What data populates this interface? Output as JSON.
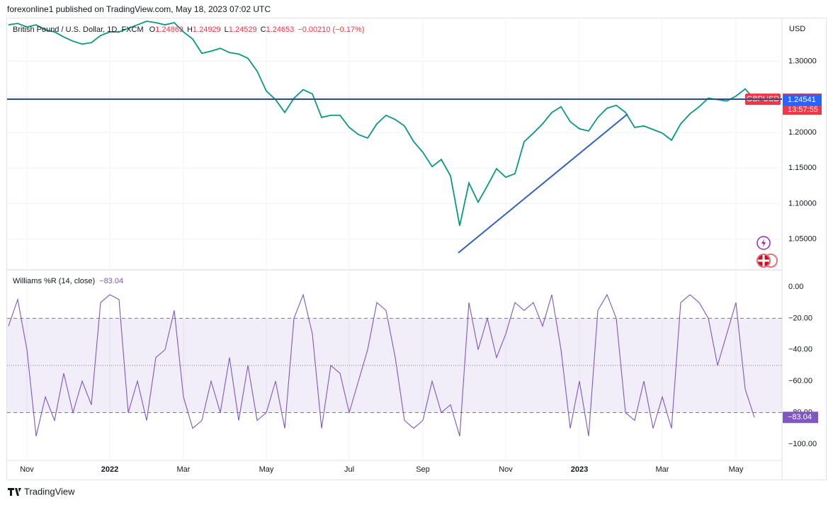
{
  "byline": "forexonline1 published on TradingView.com, May 18, 2023 07:02 UTC",
  "footer": "TradingView",
  "chart_data": [
    {
      "type": "line",
      "title": "British Pound / U.S. Dollar, 1D, FXCM",
      "ohlc": [
        {
          "label": "O",
          "value": "1.24863"
        },
        {
          "label": "H",
          "value": "1.24929"
        },
        {
          "label": "L",
          "value": "1.24529"
        },
        {
          "label": "C",
          "value": "1.24653"
        }
      ],
      "change": "−0.00210 (−0.17%)",
      "y_axis_label": "USD",
      "symbol": "GBPUSD",
      "last_price": "1.24653",
      "countdown": "13:57:55",
      "bid_price": "1.24541",
      "categories": [
        null,
        null,
        "Nov",
        null,
        null,
        null,
        null,
        null,
        null,
        null,
        null,
        "2022",
        null,
        null,
        null,
        null,
        null,
        null,
        null,
        "Mar",
        null,
        null,
        null,
        null,
        null,
        null,
        null,
        null,
        "May",
        null,
        null,
        null,
        null,
        null,
        null,
        null,
        null,
        "Jul",
        null,
        null,
        null,
        null,
        null,
        null,
        null,
        "Sep",
        null,
        null,
        null,
        null,
        null,
        null,
        null,
        null,
        "Nov",
        null,
        null,
        null,
        null,
        null,
        null,
        null,
        "2023",
        null,
        null,
        null,
        null,
        null,
        null,
        null,
        null,
        "Mar",
        null,
        null,
        null,
        null,
        null,
        null,
        null,
        "May",
        null,
        null
      ],
      "series": [
        {
          "name": "GBPUSD",
          "color": "#089981",
          "values": [
            1.351,
            1.353,
            1.348,
            1.351,
            1.344,
            1.341,
            1.334,
            1.328,
            1.324,
            1.326,
            1.336,
            1.341,
            1.341,
            1.346,
            1.351,
            1.356,
            1.354,
            1.351,
            1.354,
            1.341,
            1.331,
            1.311,
            1.314,
            1.318,
            1.312,
            1.31,
            1.304,
            1.286,
            1.258,
            1.246,
            1.228,
            1.248,
            1.26,
            1.254,
            1.221,
            1.224,
            1.224,
            1.207,
            1.197,
            1.192,
            1.212,
            1.224,
            1.218,
            1.209,
            1.187,
            1.172,
            1.152,
            1.162,
            1.139,
            1.069,
            1.129,
            1.102,
            1.125,
            1.149,
            1.137,
            1.142,
            1.187,
            1.199,
            1.212,
            1.228,
            1.236,
            1.215,
            1.205,
            1.202,
            1.221,
            1.234,
            1.238,
            1.228,
            1.207,
            1.209,
            1.204,
            1.199,
            1.189,
            1.212,
            1.226,
            1.236,
            1.248,
            1.246,
            1.244,
            1.251,
            1.261,
            1.2465
          ]
        }
      ],
      "ylim": [
        1.007,
        1.361
      ],
      "yticks": [
        {
          "value": 1.05,
          "label": "1.05000"
        },
        {
          "value": 1.1,
          "label": "1.10000"
        },
        {
          "value": 1.15,
          "label": "1.15000"
        },
        {
          "value": 1.2,
          "label": "1.20000"
        },
        {
          "value": 1.25,
          "label": "1.25000"
        },
        {
          "value": 1.3,
          "label": "1.30000"
        }
      ],
      "grid": true
    },
    {
      "type": "line",
      "title": "Williams %R (14, close)",
      "last_value_label": "−83.04",
      "series": [
        {
          "name": "Williams %R",
          "color": "#7e57c2",
          "values": [
            -25,
            -8,
            -40,
            -95,
            -70,
            -85,
            -55,
            -80,
            -60,
            -75,
            -10,
            -5,
            -8,
            -80,
            -60,
            -85,
            -45,
            -40,
            -15,
            -70,
            -90,
            -85,
            -60,
            -80,
            -45,
            -85,
            -50,
            -85,
            -80,
            -60,
            -90,
            -20,
            -5,
            -30,
            -90,
            -50,
            -55,
            -80,
            -60,
            -40,
            -10,
            -15,
            -45,
            -85,
            -90,
            -85,
            -60,
            -80,
            -75,
            -95,
            -10,
            -40,
            -20,
            -45,
            -30,
            -10,
            -15,
            -10,
            -25,
            -5,
            -40,
            -90,
            -60,
            -95,
            -15,
            -5,
            -20,
            -80,
            -85,
            -60,
            -90,
            -70,
            -90,
            -10,
            -5,
            -10,
            -20,
            -50,
            -30,
            -10,
            -65,
            -83.04
          ]
        }
      ],
      "levels": {
        "upper": -20,
        "middle": -50,
        "lower": -80
      },
      "ylim": [
        -110.4,
        10.8
      ],
      "yticks": [
        {
          "value": 0,
          "label": "0.00"
        },
        {
          "value": -20,
          "label": "−20.00"
        },
        {
          "value": -40,
          "label": "−40.00"
        },
        {
          "value": -60,
          "label": "−60.00"
        },
        {
          "value": -80,
          "label": "−80.00"
        },
        {
          "value": -100,
          "label": "−100.00"
        }
      ],
      "grid": true
    }
  ]
}
